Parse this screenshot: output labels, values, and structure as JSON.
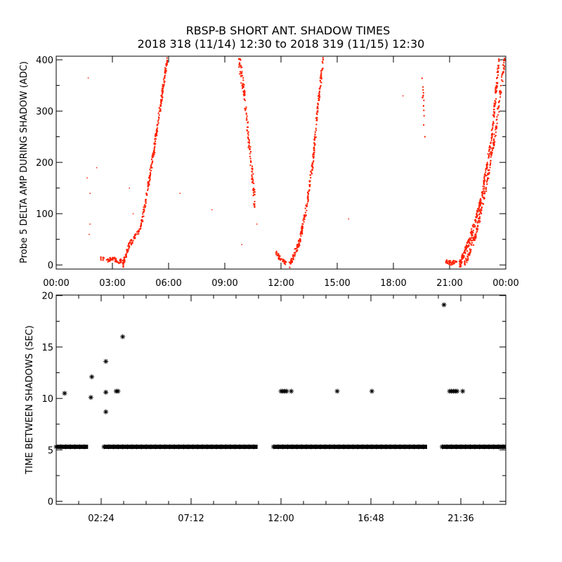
{
  "title": "RBSP-B SHORT ANT. SHADOW TIMES",
  "subtitle": "2018 318 (11/14) 12:30 to 2018 319 (11/15) 12:30",
  "colors": {
    "points": "#ff2000",
    "stars": "#000000"
  },
  "chart_data": [
    {
      "type": "scatter",
      "ylabel": "Probe 5 DELTA AMP DURING SHADOW (ADC)",
      "xlabel": "",
      "xlim": [
        0,
        24
      ],
      "ylim": [
        -8,
        407
      ],
      "xticks": [
        {
          "v": 0,
          "label": "00:00"
        },
        {
          "v": 3,
          "label": "03:00"
        },
        {
          "v": 6,
          "label": "06:00"
        },
        {
          "v": 9,
          "label": "09:00"
        },
        {
          "v": 12,
          "label": "12:00"
        },
        {
          "v": 15,
          "label": "15:00"
        },
        {
          "v": 18,
          "label": "18:00"
        },
        {
          "v": 21,
          "label": "21:00"
        },
        {
          "v": 24,
          "label": "00:00"
        }
      ],
      "yticks": [
        {
          "v": 0,
          "label": "0"
        },
        {
          "v": 100,
          "label": "100"
        },
        {
          "v": 200,
          "label": "200"
        },
        {
          "v": 300,
          "label": "300"
        },
        {
          "v": 400,
          "label": "400"
        }
      ],
      "branches": [
        {
          "spread": 4,
          "n": 60,
          "knots": [
            [
              2.4,
              12
            ],
            [
              2.8,
              8
            ],
            [
              3.0,
              14
            ],
            [
              3.3,
              5
            ],
            [
              3.5,
              10
            ]
          ]
        },
        {
          "spread": 6,
          "n": 320,
          "knots": [
            [
              3.55,
              0
            ],
            [
              3.9,
              40
            ],
            [
              4.5,
              70
            ],
            [
              4.9,
              150
            ],
            [
              5.25,
              230
            ],
            [
              5.6,
              320
            ],
            [
              5.95,
              405
            ]
          ]
        },
        {
          "spread": 15,
          "n": 140,
          "knots": [
            [
              9.75,
              405
            ],
            [
              10.05,
              330
            ],
            [
              10.35,
              220
            ],
            [
              10.6,
              120
            ]
          ]
        },
        {
          "spread": 4,
          "n": 40,
          "knots": [
            [
              11.7,
              25
            ],
            [
              12.0,
              10
            ],
            [
              12.3,
              2
            ]
          ]
        },
        {
          "spread": 6,
          "n": 260,
          "knots": [
            [
              12.45,
              0
            ],
            [
              12.95,
              40
            ],
            [
              13.3,
              100
            ],
            [
              13.7,
              200
            ],
            [
              13.95,
              300
            ],
            [
              14.25,
              405
            ]
          ]
        },
        {
          "spread": 8,
          "n": 15,
          "knots": [
            [
              19.5,
              400
            ],
            [
              19.6,
              320
            ],
            [
              19.7,
              240
            ]
          ]
        },
        {
          "spread": 4,
          "n": 40,
          "knots": [
            [
              20.8,
              8
            ],
            [
              21.1,
              3
            ],
            [
              21.4,
              8
            ]
          ]
        },
        {
          "spread": 7,
          "n": 300,
          "knots": [
            [
              21.55,
              0
            ],
            [
              22.1,
              50
            ],
            [
              22.7,
              130
            ],
            [
              23.25,
              250
            ],
            [
              23.65,
              405
            ]
          ]
        },
        {
          "spread": 7,
          "n": 200,
          "knots": [
            [
              21.8,
              0
            ],
            [
              22.4,
              60
            ],
            [
              22.95,
              150
            ],
            [
              23.45,
              260
            ],
            [
              23.95,
              405
            ]
          ]
        }
      ],
      "isolated": [
        [
          1.7,
          365
        ],
        [
          1.65,
          170
        ],
        [
          1.8,
          80
        ],
        [
          1.75,
          60
        ],
        [
          2.15,
          190
        ],
        [
          1.8,
          140
        ],
        [
          6.6,
          140
        ],
        [
          8.3,
          108
        ],
        [
          9.9,
          40
        ],
        [
          10.7,
          80
        ],
        [
          15.6,
          90
        ],
        [
          18.5,
          330
        ],
        [
          4.1,
          100
        ],
        [
          3.9,
          150
        ]
      ]
    },
    {
      "type": "scatter",
      "ylabel": "TIME BETWEEN SHADOWS (SEC)",
      "xlabel": "",
      "xlim": [
        0,
        24
      ],
      "ylim": [
        -0.3,
        20.05
      ],
      "xticks": [
        {
          "v": 2.4,
          "label": "02:24"
        },
        {
          "v": 7.2,
          "label": "07:12"
        },
        {
          "v": 12,
          "label": "12:00"
        },
        {
          "v": 16.8,
          "label": "16:48"
        },
        {
          "v": 21.6,
          "label": "21:36"
        }
      ],
      "yticks": [
        {
          "v": 0,
          "label": "0"
        },
        {
          "v": 5,
          "label": "5"
        },
        {
          "v": 10,
          "label": "10"
        },
        {
          "v": 15,
          "label": "15"
        },
        {
          "v": 20,
          "label": "20"
        }
      ],
      "baseline_value": 5.3,
      "baseline_ranges": [
        [
          0,
          1.7
        ],
        [
          2.55,
          10.75
        ],
        [
          11.6,
          19.8
        ],
        [
          20.6,
          24
        ]
      ],
      "points": [
        [
          0.45,
          10.5
        ],
        [
          1.85,
          10.1
        ],
        [
          1.9,
          12.1
        ],
        [
          2.65,
          13.6
        ],
        [
          2.65,
          10.6
        ],
        [
          2.65,
          8.7
        ],
        [
          3.2,
          10.7
        ],
        [
          3.3,
          10.7
        ],
        [
          3.55,
          16.0
        ],
        [
          12.0,
          10.7
        ],
        [
          12.1,
          10.7
        ],
        [
          12.2,
          10.7
        ],
        [
          12.3,
          10.7
        ],
        [
          12.55,
          10.7
        ],
        [
          15.0,
          10.7
        ],
        [
          16.85,
          10.7
        ],
        [
          20.7,
          19.1
        ],
        [
          21.0,
          10.7
        ],
        [
          21.1,
          10.7
        ],
        [
          21.2,
          10.7
        ],
        [
          21.3,
          10.7
        ],
        [
          21.4,
          10.7
        ],
        [
          21.7,
          10.7
        ]
      ]
    }
  ]
}
